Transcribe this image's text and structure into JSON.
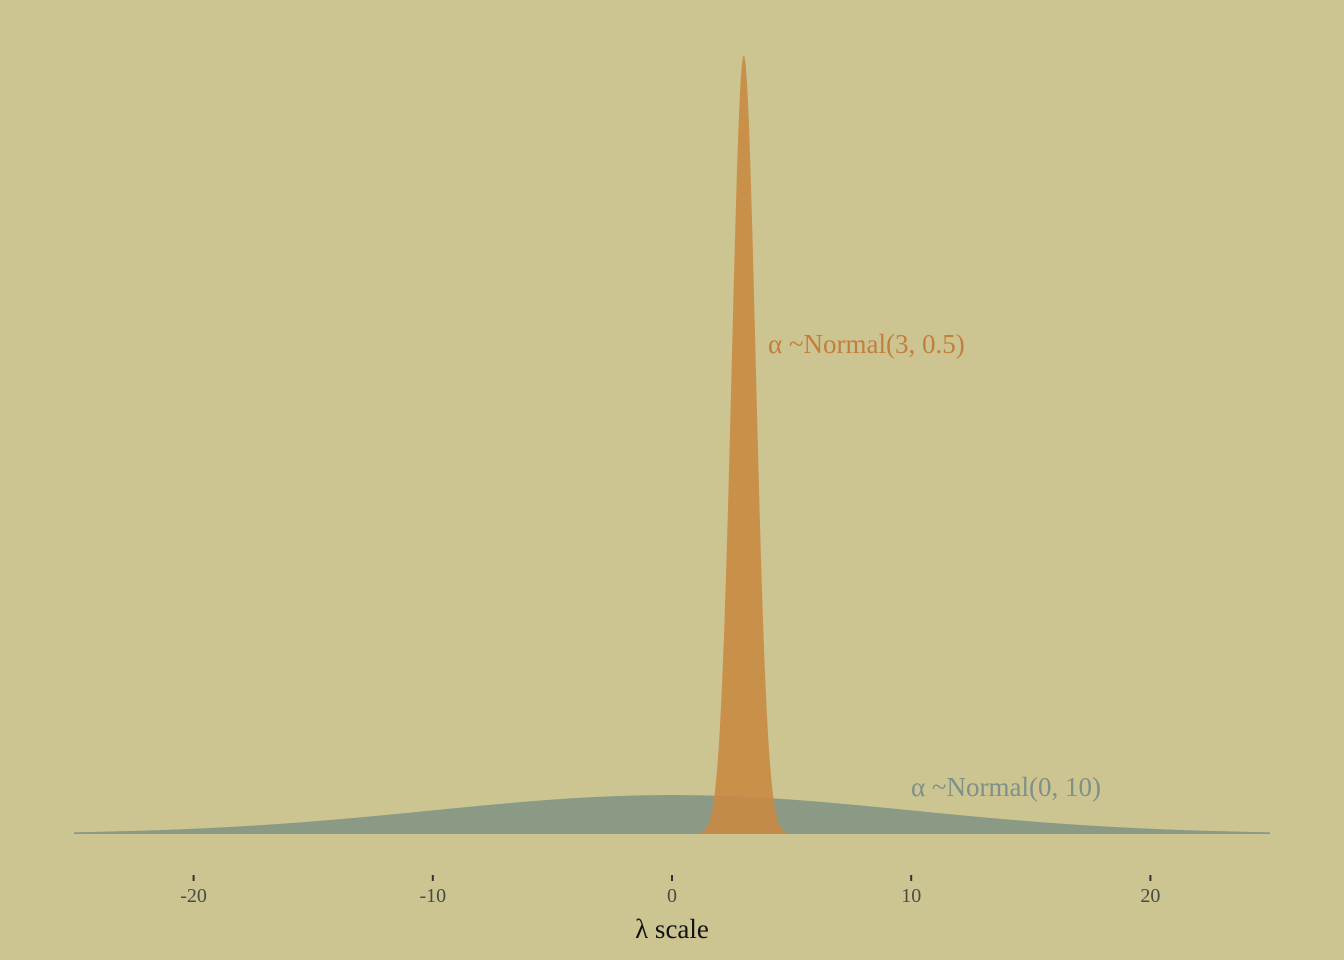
{
  "chart_data": {
    "type": "area",
    "xlabel": "λ scale",
    "ylabel": "",
    "xlim": [
      -25,
      25
    ],
    "xticks": [
      -20,
      -10,
      0,
      10,
      20
    ],
    "xtick_labels": [
      "-20",
      "-10",
      "0",
      "10",
      "20"
    ],
    "grid": false,
    "legend": "none",
    "series": [
      {
        "distribution": "normal",
        "mean": 0,
        "sd": 10,
        "label": "α ~Normal(0, 10)",
        "color": "#8A9A85"
      },
      {
        "distribution": "normal",
        "mean": 3,
        "sd": 0.5,
        "label": "α ~Normal(3, 0.5)",
        "color": "#C98A43"
      }
    ]
  },
  "colors": {
    "background": "#CCC591",
    "wide_fill": "#8A9A85",
    "narrow_fill": "#C98A43",
    "narrow_label": "#C47E3C",
    "wide_label": "#7E9088"
  }
}
